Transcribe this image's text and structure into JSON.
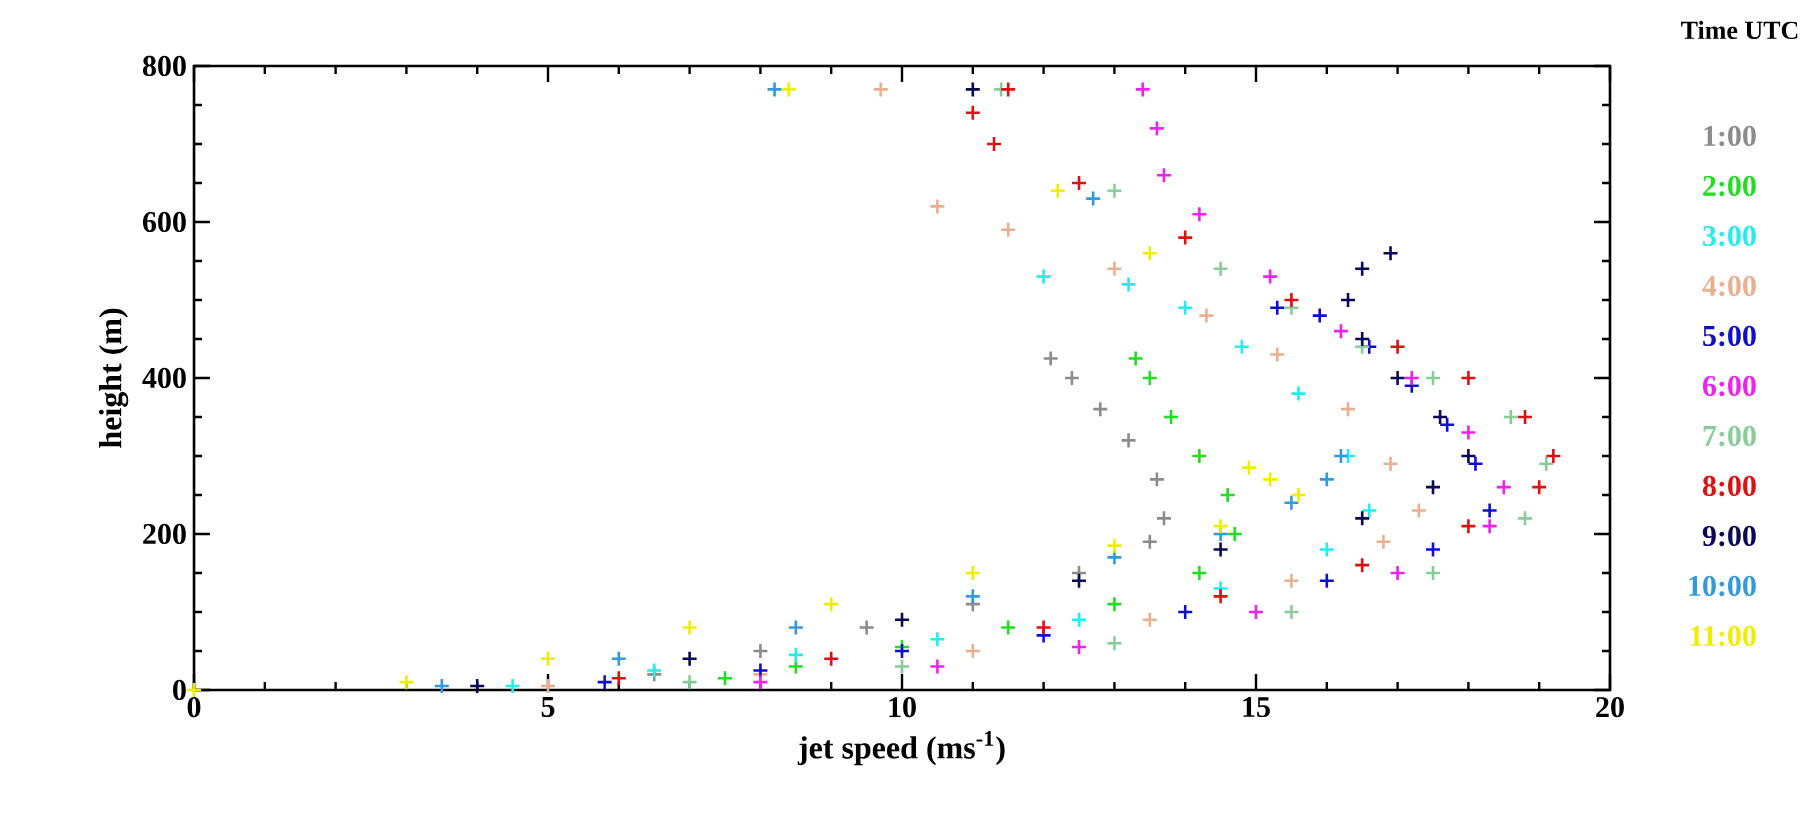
{
  "chart_data": {
    "type": "scatter",
    "xlabel": "jet speed (ms$^{-1}$)",
    "ylabel": "height (m)",
    "legend_title": "Time UTC",
    "legend": "right",
    "marker": "cross",
    "grid": false,
    "xlim": [
      0,
      20
    ],
    "ylim": [
      0,
      800
    ],
    "xticks": [
      0,
      5,
      10,
      15,
      20
    ],
    "yticks": [
      0,
      200,
      400,
      600,
      800
    ],
    "series": [
      {
        "name": "1:00",
        "color": "#8c8c8c",
        "x": [
          6.5,
          8,
          9.5,
          11,
          12.5,
          13.5,
          13.7,
          13.6,
          13.2,
          12.8,
          12.4,
          12.1
        ],
        "values": [
          20,
          50,
          80,
          110,
          150,
          190,
          220,
          270,
          320,
          360,
          400,
          425
        ]
      },
      {
        "name": "2:00",
        "color": "#22dd22",
        "x": [
          7.5,
          8.5,
          10,
          11.5,
          13,
          14.2,
          14.7,
          14.6,
          14.2,
          13.8,
          13.5,
          13.3
        ],
        "values": [
          15,
          30,
          55,
          80,
          110,
          150,
          200,
          250,
          300,
          350,
          400,
          425
        ]
      },
      {
        "name": "3:00",
        "color": "#22eeee",
        "x": [
          4.5,
          6.5,
          8.5,
          10.5,
          12.5,
          14.5,
          16,
          16.6,
          16.3,
          15.6,
          14.8,
          14,
          13.2,
          12
        ],
        "values": [
          5,
          25,
          45,
          65,
          90,
          130,
          180,
          230,
          300,
          380,
          440,
          490,
          520,
          530
        ]
      },
      {
        "name": "4:00",
        "color": "#e8b090",
        "x": [
          5,
          8,
          11,
          13.5,
          15.5,
          16.8,
          17.3,
          16.9,
          16.3,
          15.3,
          14.3,
          13,
          11.5,
          10.5,
          9.7
        ],
        "values": [
          5,
          20,
          50,
          90,
          140,
          190,
          230,
          290,
          360,
          430,
          480,
          540,
          590,
          620,
          770
        ]
      },
      {
        "name": "5:00",
        "color": "#1010cc",
        "x": [
          5.8,
          8,
          10,
          12,
          14,
          16,
          17.5,
          18.3,
          18.1,
          17.7,
          17.2,
          16.6,
          15.9,
          15.3
        ],
        "values": [
          10,
          25,
          50,
          70,
          100,
          140,
          180,
          230,
          290,
          340,
          390,
          440,
          480,
          490
        ]
      },
      {
        "name": "6:00",
        "color": "#ee22ee",
        "x": [
          8,
          10.5,
          12.5,
          15,
          17,
          18.3,
          18.5,
          18,
          17.2,
          16.2,
          15.2,
          14.2,
          13.7,
          13.6,
          13.4
        ],
        "values": [
          10,
          30,
          55,
          100,
          150,
          210,
          260,
          330,
          400,
          460,
          530,
          610,
          660,
          720,
          770
        ]
      },
      {
        "name": "7:00",
        "color": "#88cc99",
        "x": [
          7,
          10,
          13,
          15.5,
          17.5,
          18.8,
          19.1,
          18.6,
          17.5,
          16.5,
          15.5,
          14.5,
          13,
          11.4
        ],
        "values": [
          10,
          30,
          60,
          100,
          150,
          220,
          290,
          350,
          400,
          440,
          490,
          540,
          640,
          770
        ]
      },
      {
        "name": "8:00",
        "color": "#dd1111",
        "x": [
          6,
          9,
          12,
          14.5,
          16.5,
          18,
          19,
          19.2,
          18.8,
          18,
          17,
          15.5,
          14,
          12.5,
          11.3,
          11,
          11.5
        ],
        "values": [
          15,
          40,
          80,
          120,
          160,
          210,
          260,
          300,
          350,
          400,
          440,
          500,
          580,
          650,
          700,
          740,
          770
        ]
      },
      {
        "name": "9:00",
        "color": "#0a0a55",
        "x": [
          4,
          7,
          10,
          12.5,
          14.5,
          16.5,
          17.5,
          18,
          17.6,
          17,
          16.5,
          16.3,
          16.5,
          16.9,
          11
        ],
        "values": [
          5,
          40,
          90,
          140,
          180,
          220,
          260,
          300,
          350,
          400,
          450,
          500,
          540,
          560,
          770
        ]
      },
      {
        "name": "10:00",
        "color": "#3399dd",
        "x": [
          3.5,
          6,
          8.5,
          11,
          13,
          14.5,
          15.5,
          16,
          16.2,
          12.7,
          8.2
        ],
        "values": [
          5,
          40,
          80,
          120,
          170,
          200,
          240,
          270,
          300,
          630,
          770
        ]
      },
      {
        "name": "11:00",
        "color": "#eeee00",
        "x": [
          0,
          3,
          5,
          7,
          9,
          11,
          13,
          14.5,
          15.6,
          15.2,
          14.9,
          13.5,
          12.2,
          8.4
        ],
        "values": [
          0,
          10,
          40,
          80,
          110,
          150,
          185,
          210,
          250,
          270,
          285,
          560,
          640,
          770
        ]
      }
    ]
  }
}
